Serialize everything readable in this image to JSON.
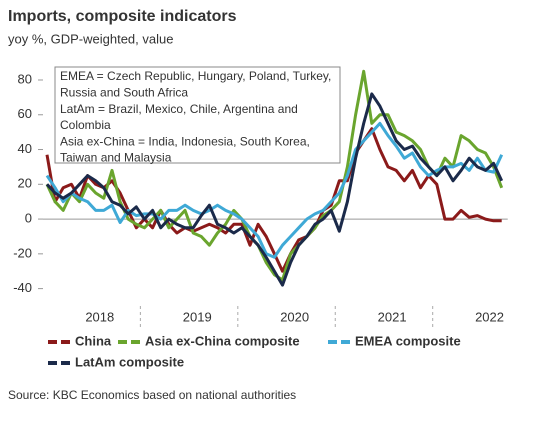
{
  "chart_data": {
    "type": "line",
    "title": "Imports, composite indicators",
    "subtitle": "yoy %, GDP-weighted, value",
    "source": "Source: KBC Economics based on national authorities",
    "annotation": [
      "EMEA = Czech Republic, Hungary, Poland, Turkey,",
      "Russia and South Africa",
      "LatAm = Brazil, Mexico, Chile, Argentina and",
      "Colombia",
      "Asia ex-China = India, Indonesia, South Korea,",
      "Taiwan and Malaysia"
    ],
    "categories": [
      null,
      null,
      null,
      null,
      null,
      null,
      "2018",
      null,
      null,
      null,
      null,
      null,
      null,
      null,
      null,
      null,
      null,
      null,
      "2019",
      null,
      null,
      null,
      null,
      null,
      null,
      null,
      null,
      null,
      null,
      null,
      "2020",
      null,
      null,
      null,
      null,
      null,
      null,
      null,
      null,
      null,
      null,
      null,
      "2021",
      null,
      null,
      null,
      null,
      null,
      null,
      null,
      null,
      null,
      null,
      null,
      "2022",
      null,
      null
    ],
    "ylim": [
      -50,
      90
    ],
    "yticks": [
      -40,
      -20,
      0,
      20,
      40,
      60,
      80
    ],
    "series": [
      {
        "name": "China",
        "color": "#8b1a1a",
        "values": [
          37,
          10,
          18,
          20,
          12,
          25,
          20,
          18,
          22,
          15,
          5,
          -5,
          0,
          -5,
          5,
          -3,
          -8,
          -5,
          -7,
          -5,
          -3,
          -5,
          -8,
          -3,
          -3,
          -15,
          -3,
          -10,
          -20,
          -30,
          -20,
          -12,
          -10,
          -5,
          5,
          8,
          22,
          22,
          38,
          45,
          52,
          40,
          30,
          28,
          22,
          28,
          18,
          25,
          20,
          0,
          0,
          5,
          1,
          2,
          0,
          -1,
          -1
        ]
      },
      {
        "name": "Asia ex-China composite",
        "color": "#6aa52e",
        "values": [
          20,
          10,
          5,
          15,
          10,
          20,
          15,
          12,
          28,
          10,
          0,
          -3,
          -5,
          0,
          5,
          -5,
          0,
          5,
          -8,
          -10,
          -15,
          -8,
          -3,
          5,
          0,
          -10,
          -15,
          -25,
          -32,
          -35,
          -20,
          -15,
          -10,
          -5,
          2,
          5,
          10,
          30,
          60,
          85,
          55,
          60,
          60,
          50,
          48,
          45,
          40,
          30,
          25,
          35,
          30,
          48,
          45,
          40,
          38,
          30,
          18
        ]
      },
      {
        "name": "EMEA composite",
        "color": "#3fa9d6",
        "values": [
          25,
          18,
          10,
          15,
          12,
          10,
          5,
          5,
          8,
          -2,
          5,
          2,
          3,
          3,
          0,
          5,
          5,
          8,
          5,
          3,
          5,
          8,
          5,
          3,
          0,
          -5,
          -10,
          -20,
          -22,
          -15,
          -10,
          -5,
          0,
          3,
          5,
          10,
          15,
          25,
          40,
          45,
          50,
          55,
          48,
          42,
          35,
          38,
          30,
          25,
          28,
          30,
          30,
          32,
          28,
          35,
          28,
          27,
          37
        ]
      },
      {
        "name": "LatAm composite",
        "color": "#1b2a4a",
        "values": [
          20,
          15,
          12,
          15,
          20,
          25,
          22,
          18,
          10,
          8,
          3,
          7,
          0,
          5,
          -5,
          0,
          -3,
          -5,
          -5,
          2,
          8,
          -3,
          -5,
          -8,
          -5,
          -10,
          -15,
          -22,
          -30,
          -38,
          -25,
          -15,
          -10,
          -3,
          0,
          5,
          -7,
          10,
          35,
          55,
          72,
          65,
          55,
          45,
          40,
          42,
          35,
          30,
          25,
          30,
          22,
          28,
          35,
          30,
          28,
          32,
          22
        ]
      }
    ]
  }
}
